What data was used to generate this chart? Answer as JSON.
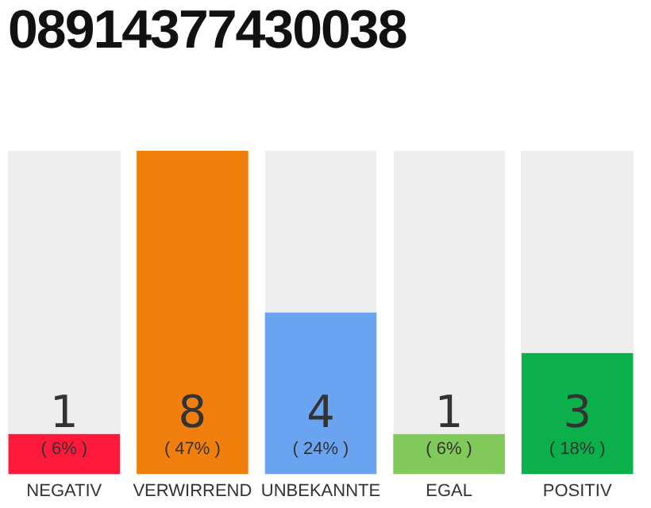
{
  "chart_data": {
    "type": "bar",
    "title": "08914377430038",
    "categories": [
      "NEGATIV",
      "VERWIRREND",
      "UNBEKANNTE",
      "EGAL",
      "POSITIV"
    ],
    "values": [
      1,
      8,
      4,
      1,
      3
    ],
    "colors": [
      "#ff1a3c",
      "#f07f0e",
      "#6aa3ef",
      "#80c95a",
      "#0cb04a"
    ],
    "data_labels": true,
    "annotations": [
      "( 6% )",
      "( 47% )",
      "( 24% )",
      "( 6% )",
      "( 18% )"
    ],
    "grid": false,
    "legend": false
  }
}
